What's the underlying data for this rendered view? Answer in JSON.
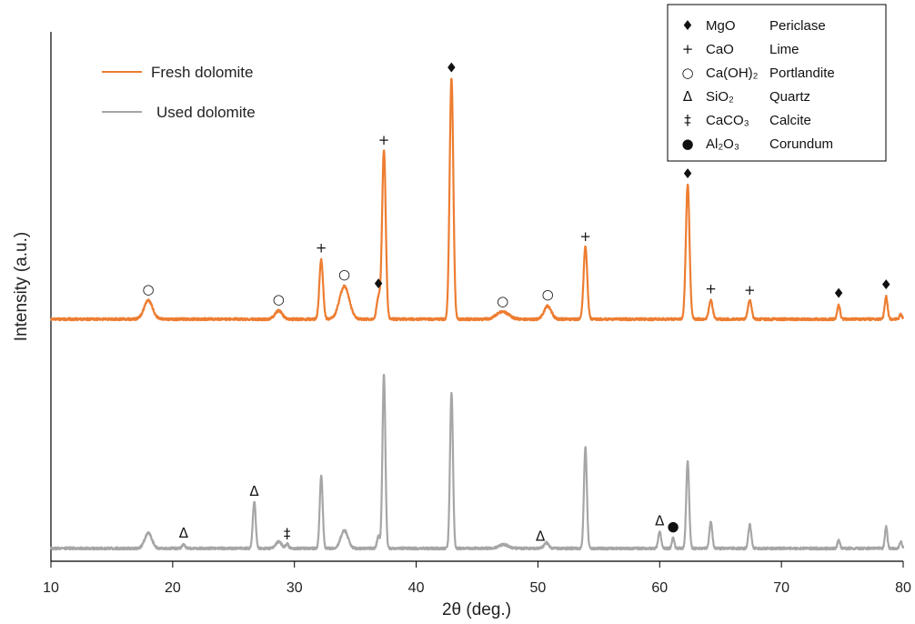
{
  "chart_data": {
    "type": "line",
    "title": "",
    "xlabel": "2θ (deg.)",
    "ylabel": "Intensity (a.u.)",
    "xlim": [
      10,
      80
    ],
    "xticks": [
      10,
      20,
      30,
      40,
      50,
      60,
      70,
      80
    ],
    "y_tick_labels": false,
    "grid": false,
    "legend_position": "top-left",
    "colors": {
      "fresh": "#ED7D31",
      "used": "#A6A6A6"
    },
    "series": [
      {
        "name": "Fresh dolomite",
        "color": "#ED7D31",
        "baseline": 0.3,
        "peaks": [
          [
            18.0,
            2.0,
            0.35
          ],
          [
            28.7,
            0.9,
            0.3
          ],
          [
            32.2,
            6.3,
            0.15
          ],
          [
            34.1,
            3.5,
            0.4
          ],
          [
            36.9,
            2.3,
            0.15
          ],
          [
            37.35,
            18.0,
            0.15
          ],
          [
            42.9,
            25.7,
            0.15
          ],
          [
            47.1,
            0.8,
            0.5
          ],
          [
            50.8,
            1.4,
            0.3
          ],
          [
            53.9,
            7.7,
            0.15
          ],
          [
            62.3,
            14.3,
            0.15
          ],
          [
            64.2,
            2.0,
            0.15
          ],
          [
            67.4,
            2.0,
            0.15
          ],
          [
            74.7,
            1.5,
            0.12
          ],
          [
            78.6,
            2.4,
            0.12
          ],
          [
            79.8,
            0.5,
            0.1
          ]
        ]
      },
      {
        "name": "Used dolomite",
        "color": "#A6A6A6",
        "baseline": 0.3,
        "peaks": [
          [
            18.0,
            1.6,
            0.3
          ],
          [
            20.9,
            0.4,
            0.12
          ],
          [
            26.7,
            5.0,
            0.12
          ],
          [
            28.7,
            0.7,
            0.25
          ],
          [
            29.4,
            0.5,
            0.12
          ],
          [
            32.2,
            7.8,
            0.12
          ],
          [
            34.1,
            1.9,
            0.3
          ],
          [
            36.9,
            1.3,
            0.12
          ],
          [
            37.35,
            18.5,
            0.12
          ],
          [
            42.9,
            16.6,
            0.12
          ],
          [
            47.2,
            0.4,
            0.4
          ],
          [
            50.7,
            0.6,
            0.2
          ],
          [
            53.9,
            10.8,
            0.12
          ],
          [
            60.0,
            1.8,
            0.12
          ],
          [
            61.1,
            1.1,
            0.1
          ],
          [
            62.3,
            9.3,
            0.12
          ],
          [
            64.2,
            2.8,
            0.12
          ],
          [
            67.4,
            2.5,
            0.12
          ],
          [
            74.7,
            0.9,
            0.1
          ],
          [
            78.6,
            2.3,
            0.1
          ],
          [
            79.8,
            0.7,
            0.1
          ]
        ]
      }
    ],
    "phases": [
      {
        "symbol": "♦",
        "formula": "MgO",
        "name": "Periclase"
      },
      {
        "symbol": "+",
        "formula": "CaO",
        "name": "Lime"
      },
      {
        "symbol": "○",
        "formula": "Ca(OH)₂",
        "name": "Portlandite"
      },
      {
        "symbol": "Δ",
        "formula": "SiO₂",
        "name": "Quartz"
      },
      {
        "symbol": "‡",
        "formula": "CaCO₃",
        "name": "Calcite"
      },
      {
        "symbol": "●",
        "formula": "Al₂O₃",
        "name": "Corundum"
      }
    ],
    "peak_annotations": [
      {
        "series": "Fresh dolomite",
        "x": 18.0,
        "symbol": "○"
      },
      {
        "series": "Fresh dolomite",
        "x": 28.7,
        "symbol": "○"
      },
      {
        "series": "Fresh dolomite",
        "x": 32.2,
        "symbol": "+"
      },
      {
        "series": "Fresh dolomite",
        "x": 34.1,
        "symbol": "○"
      },
      {
        "series": "Fresh dolomite",
        "x": 36.9,
        "symbol": "♦"
      },
      {
        "series": "Fresh dolomite",
        "x": 37.35,
        "symbol": "+"
      },
      {
        "series": "Fresh dolomite",
        "x": 42.9,
        "symbol": "♦"
      },
      {
        "series": "Fresh dolomite",
        "x": 47.1,
        "symbol": "○"
      },
      {
        "series": "Fresh dolomite",
        "x": 50.8,
        "symbol": "○"
      },
      {
        "series": "Fresh dolomite",
        "x": 53.9,
        "symbol": "+"
      },
      {
        "series": "Fresh dolomite",
        "x": 62.3,
        "symbol": "♦"
      },
      {
        "series": "Fresh dolomite",
        "x": 64.2,
        "symbol": "+"
      },
      {
        "series": "Fresh dolomite",
        "x": 67.4,
        "symbol": "+"
      },
      {
        "series": "Fresh dolomite",
        "x": 74.7,
        "symbol": "♦"
      },
      {
        "series": "Fresh dolomite",
        "x": 78.6,
        "symbol": "♦"
      },
      {
        "series": "Used dolomite",
        "x": 20.9,
        "symbol": "Δ"
      },
      {
        "series": "Used dolomite",
        "x": 26.7,
        "symbol": "Δ"
      },
      {
        "series": "Used dolomite",
        "x": 29.4,
        "symbol": "‡"
      },
      {
        "series": "Used dolomite",
        "x": 50.2,
        "symbol": "Δ"
      },
      {
        "series": "Used dolomite",
        "x": 60.0,
        "symbol": "Δ"
      },
      {
        "series": "Used dolomite",
        "x": 61.1,
        "symbol": "●"
      }
    ]
  }
}
